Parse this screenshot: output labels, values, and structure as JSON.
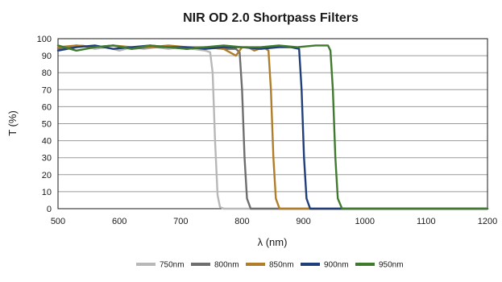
{
  "chart_data": {
    "type": "line",
    "title": "NIR OD 2.0 Shortpass Filters",
    "xlabel": "λ (nm)",
    "ylabel": "T (%)",
    "xlim": [
      500,
      1200
    ],
    "ylim": [
      0,
      100
    ],
    "xticks": [
      "500",
      "600",
      "700",
      "800",
      "900",
      "1000",
      "1100",
      "1200"
    ],
    "yticks": [
      "0",
      "10",
      "20",
      "30",
      "40",
      "50",
      "60",
      "70",
      "80",
      "90",
      "100"
    ],
    "grid": "horizontal",
    "legend_position": "bottom",
    "series": [
      {
        "name": "750nm",
        "color": "#b8b8b8",
        "x": [
          500,
          520,
          540,
          560,
          580,
          600,
          620,
          640,
          660,
          680,
          700,
          720,
          740,
          748,
          752,
          756,
          760,
          764,
          770,
          800,
          1200
        ],
        "y": [
          95,
          94,
          96,
          94,
          95,
          93,
          95,
          94,
          95,
          94,
          95,
          94,
          93,
          92,
          80,
          40,
          8,
          1,
          0,
          0,
          0
        ]
      },
      {
        "name": "800nm",
        "color": "#6e6e6e",
        "x": [
          500,
          530,
          560,
          590,
          620,
          650,
          680,
          710,
          740,
          770,
          790,
          796,
          800,
          804,
          808,
          814,
          830,
          1200
        ],
        "y": [
          94,
          96,
          95,
          96,
          94,
          95,
          95,
          94,
          95,
          94,
          94,
          92,
          70,
          30,
          6,
          0,
          0,
          0
        ]
      },
      {
        "name": "850nm",
        "color": "#b07d2a",
        "x": [
          500,
          530,
          560,
          590,
          620,
          650,
          680,
          710,
          740,
          770,
          790,
          800,
          810,
          820,
          835,
          843,
          847,
          851,
          855,
          861,
          880,
          1200
        ],
        "y": [
          95,
          96,
          95,
          96,
          95,
          95,
          96,
          95,
          95,
          94,
          90,
          95,
          95,
          93,
          95,
          93,
          70,
          30,
          6,
          0,
          0,
          0
        ]
      },
      {
        "name": "900nm",
        "color": "#203f7a",
        "x": [
          500,
          530,
          560,
          590,
          620,
          650,
          680,
          710,
          740,
          770,
          800,
          830,
          860,
          880,
          893,
          897,
          901,
          905,
          911,
          930,
          1200
        ],
        "y": [
          93,
          95,
          96,
          94,
          95,
          96,
          95,
          95,
          94,
          95,
          95,
          94,
          95,
          95,
          94,
          70,
          30,
          6,
          0,
          0,
          0
        ]
      },
      {
        "name": "950nm",
        "color": "#3f7a2e",
        "x": [
          500,
          530,
          560,
          590,
          620,
          650,
          680,
          710,
          740,
          770,
          800,
          830,
          860,
          890,
          920,
          940,
          944,
          948,
          952,
          956,
          963,
          980,
          1200
        ],
        "y": [
          96,
          93,
          95,
          96,
          94,
          96,
          95,
          94,
          95,
          96,
          95,
          95,
          96,
          95,
          96,
          96,
          93,
          70,
          30,
          6,
          0,
          0,
          0
        ]
      }
    ]
  }
}
